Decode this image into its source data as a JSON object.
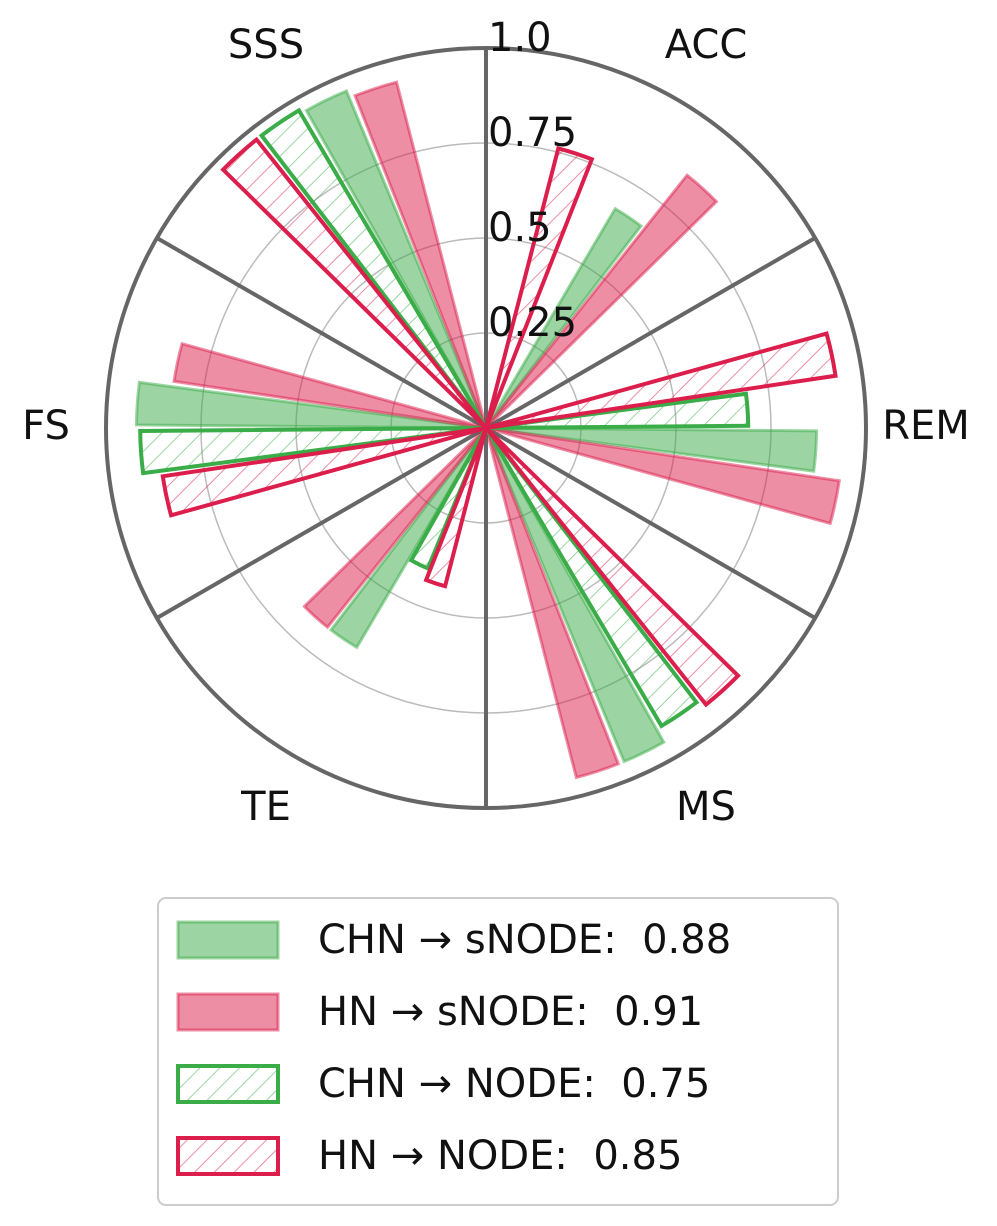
{
  "chart_data": {
    "type": "polar-bar",
    "categories": [
      "ACC",
      "REM",
      "MS",
      "TE",
      "FS",
      "SSS"
    ],
    "series": [
      {
        "name": "CHN → sNODE:  0.88",
        "color": "#3aac48",
        "hatch": false,
        "values": [
          0.67,
          0.87,
          0.95,
          0.67,
          0.92,
          0.96
        ]
      },
      {
        "name": "HN → sNODE:  0.91",
        "color": "#dc1e4c",
        "hatch": false,
        "values": [
          0.85,
          0.94,
          0.95,
          0.67,
          0.83,
          0.94
        ]
      },
      {
        "name": "CHN → NODE:  0.75",
        "color": "#3aac48",
        "hatch": true,
        "values": [
          0,
          0.69,
          0.91,
          0.4,
          0.91,
          0.97
        ]
      },
      {
        "name": "HN → NODE:  0.85",
        "color": "#dc1e4c",
        "hatch": true,
        "values": [
          0.76,
          0.93,
          0.93,
          0.43,
          0.86,
          0.97
        ]
      }
    ],
    "ylim": [
      0,
      1
    ],
    "yticks": [
      0.25,
      0.5,
      0.75,
      {
        "value": 1,
        "label": "1.0"
      }
    ],
    "grid": true,
    "legend": "bottom"
  }
}
